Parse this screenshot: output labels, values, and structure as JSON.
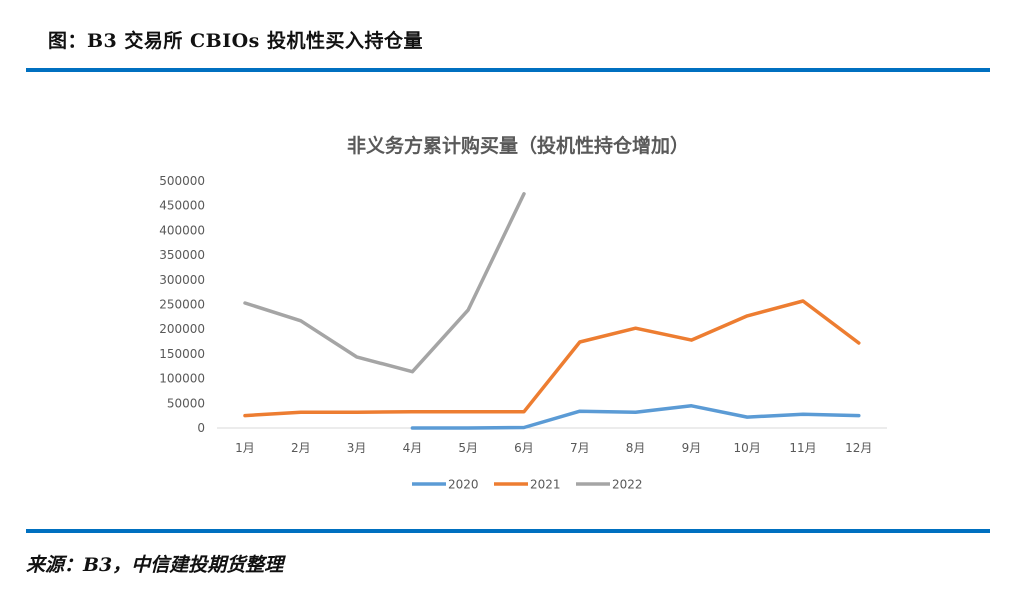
{
  "figure": {
    "title": "图：B3 交易所 CBIOs 投机性买入持仓量",
    "source": "来源：B3，中信建投期货整理",
    "rule_color": "#0070c0"
  },
  "chart_data": {
    "type": "line",
    "title": "非义务方累计购买量（投机性持仓增加）",
    "xlabel": "",
    "ylabel": "",
    "categories": [
      "1月",
      "2月",
      "3月",
      "4月",
      "5月",
      "6月",
      "7月",
      "8月",
      "9月",
      "10月",
      "11月",
      "12月"
    ],
    "yticks": [
      0,
      50000,
      100000,
      150000,
      200000,
      250000,
      300000,
      350000,
      400000,
      450000,
      500000
    ],
    "ylim": [
      0,
      500000
    ],
    "grid": false,
    "legend_position": "bottom",
    "series": [
      {
        "name": "2020",
        "color": "#5b9bd5",
        "values": [
          null,
          null,
          null,
          0,
          0,
          1000,
          34000,
          32000,
          45000,
          22000,
          28000,
          25000
        ]
      },
      {
        "name": "2021",
        "color": "#ed7d31",
        "values": [
          25000,
          32000,
          32000,
          33000,
          33000,
          33000,
          174000,
          202000,
          178000,
          227000,
          257000,
          172000
        ]
      },
      {
        "name": "2022",
        "color": "#a5a5a5",
        "values": [
          253000,
          217000,
          144000,
          114000,
          239000,
          474000,
          null,
          null,
          null,
          null,
          null,
          null
        ]
      }
    ]
  }
}
